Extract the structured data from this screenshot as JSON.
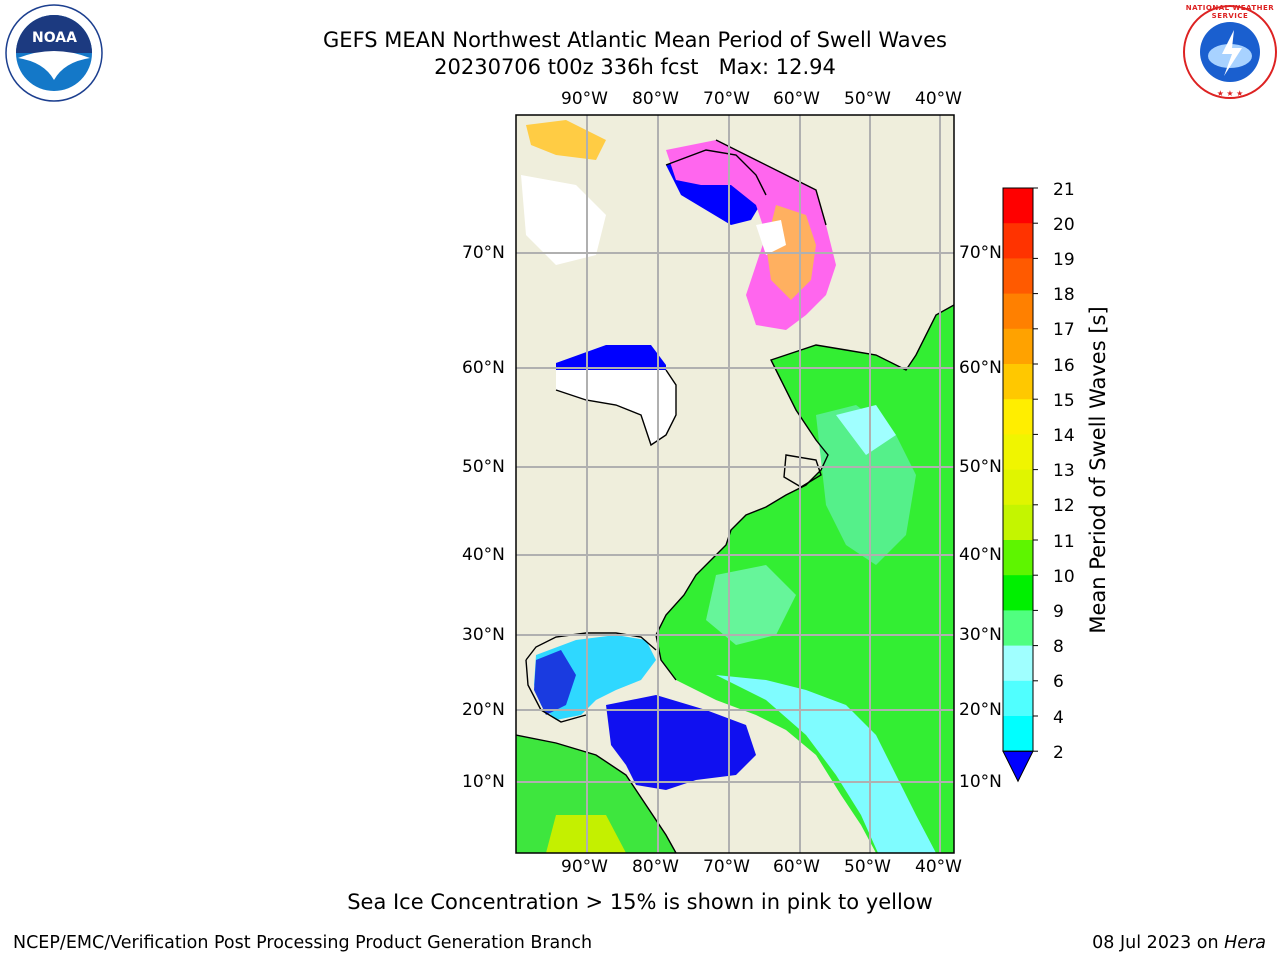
{
  "title": {
    "line1": "GEFS MEAN Northwest Atlantic Mean Period of Swell Waves",
    "line2": "20230706 t00z 336h fcst   Max: 12.94"
  },
  "logos": {
    "left": "noaa-logo",
    "left_text": "NOAA",
    "right": "nws-logo",
    "right_text": "NATIONAL WEATHER SERVICE"
  },
  "map": {
    "lon_ticks": [
      "90°W",
      "80°W",
      "70°W",
      "60°W",
      "50°W",
      "40°W"
    ],
    "lat_ticks_left": [
      "70°N",
      "60°N",
      "50°N",
      "40°N",
      "30°N",
      "20°N",
      "10°N"
    ],
    "lat_ticks_right": [
      "70°N",
      "60°N",
      "50°N",
      "40°N",
      "30°N",
      "20°N",
      "10°N"
    ],
    "land_color": "#efeedc",
    "grid_color": "#b0b0b0"
  },
  "colorbar": {
    "title": "Mean Period of Swell Waves [s]",
    "labels": [
      "21",
      "20",
      "19",
      "18",
      "17",
      "16",
      "15",
      "14",
      "13",
      "12",
      "11",
      "10",
      "9",
      "8",
      "6",
      "4",
      "2"
    ],
    "colors": [
      "#ff0000",
      "#ff3300",
      "#ff5a00",
      "#ff8000",
      "#ffa200",
      "#ffc800",
      "#ffee00",
      "#f0f500",
      "#e0f500",
      "#c4f500",
      "#5ef500",
      "#00f000",
      "#50ff80",
      "#a0ffff",
      "#50ffff",
      "#00ffff",
      "#00d8ff",
      "#0078ff"
    ],
    "extend_color": "#0000ff"
  },
  "footer": {
    "note": "Sea Ice Concentration > 15% is shown in pink to yellow",
    "left": "NCEP/EMC/Verification Post Processing Product Generation Branch",
    "date": "08 Jul 2023 on ",
    "machine": "Hera"
  }
}
